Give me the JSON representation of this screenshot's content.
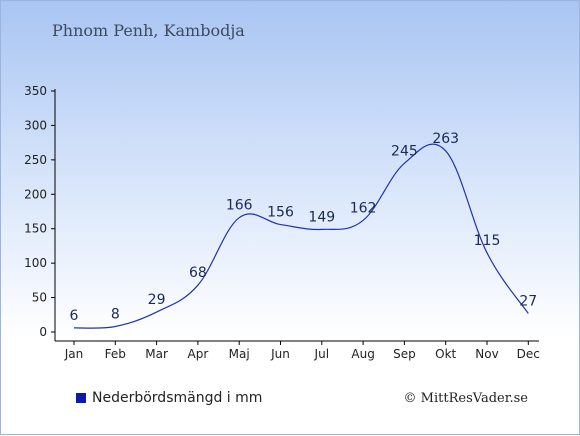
{
  "header": {
    "title": "Phnom Penh, Kambodja"
  },
  "legend": {
    "label": "Nederbördsmängd i mm"
  },
  "footer": {
    "copyright": "© MittResVader.se"
  },
  "colors": {
    "line": "#2233aa",
    "legend_swatch": "#0a1ab0",
    "axis": "#000000"
  },
  "chart_data": {
    "type": "line",
    "categories": [
      "Jan",
      "Feb",
      "Mar",
      "Apr",
      "Maj",
      "Jun",
      "Jul",
      "Aug",
      "Sep",
      "Okt",
      "Nov",
      "Dec"
    ],
    "series": [
      {
        "name": "Nederbördsmängd i mm",
        "values": [
          6,
          8,
          29,
          68,
          166,
          156,
          149,
          162,
          245,
          263,
          115,
          27
        ]
      }
    ],
    "y_ticks": [
      0,
      50,
      100,
      150,
      200,
      250,
      300,
      350
    ],
    "ylim": [
      0,
      350
    ],
    "grid": false,
    "legend_position": "bottom-left",
    "data_labels": true
  }
}
